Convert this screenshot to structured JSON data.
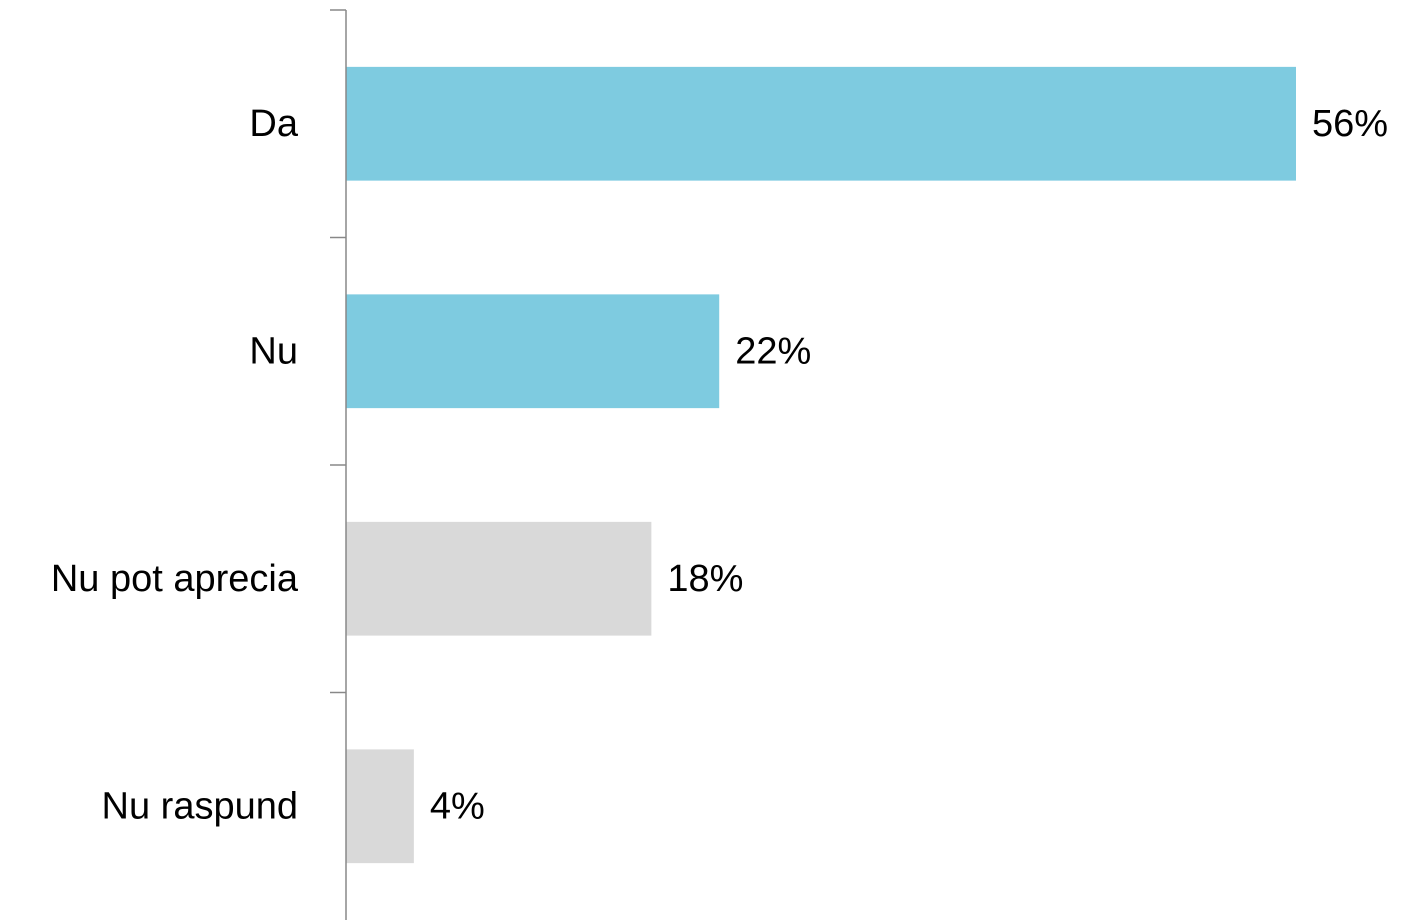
{
  "chart_data": {
    "type": "bar",
    "orientation": "horizontal",
    "categories": [
      "Da",
      "Nu",
      "Nu pot aprecia",
      "Nu raspund"
    ],
    "values": [
      56,
      22,
      18,
      4
    ],
    "value_labels": [
      "56%",
      "22%",
      "18%",
      "4%"
    ],
    "colors": [
      "#7ecbe0",
      "#7ecbe0",
      "#d9d9d9",
      "#d9d9d9"
    ]
  }
}
